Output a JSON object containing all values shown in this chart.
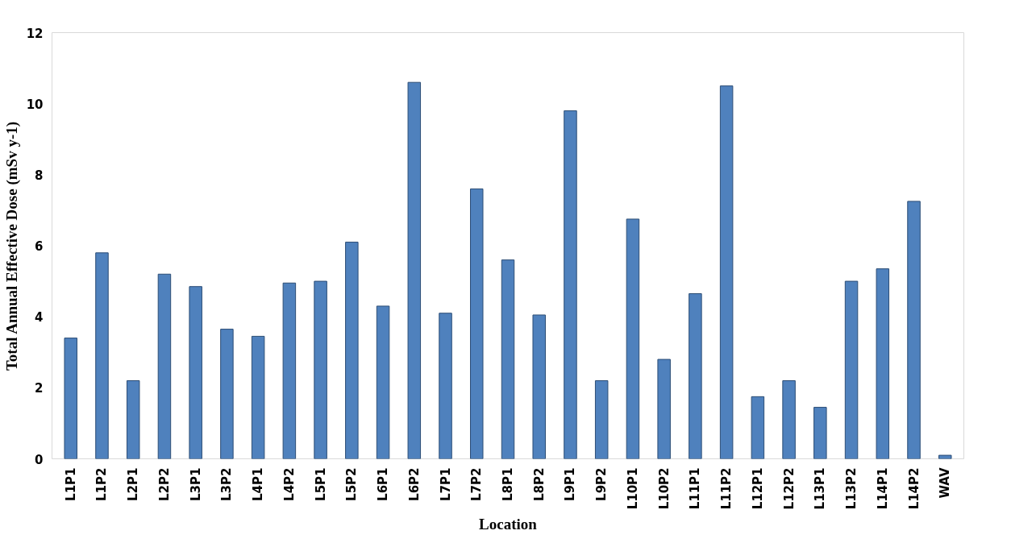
{
  "chart_data": {
    "type": "bar",
    "xlabel": "Location",
    "ylabel": "Total Annual Effective Dose (mSv y-1)",
    "categories": [
      "L1P1",
      "L1P2",
      "L2P1",
      "L2P2",
      "L3P1",
      "L3P2",
      "L4P1",
      "L4P2",
      "L5P1",
      "L5P2",
      "L6P1",
      "L6P2",
      "L7P1",
      "L7P2",
      "L8P1",
      "L8P2",
      "L9P1",
      "L9P2",
      "L10P1",
      "L10P2",
      "L11P1",
      "L11P2",
      "L12P1",
      "L12P2",
      "L13P1",
      "L13P2",
      "L14P1",
      "L14P2",
      "WAV"
    ],
    "values": [
      3.4,
      5.8,
      2.2,
      5.2,
      4.85,
      3.65,
      3.45,
      4.95,
      5.0,
      6.1,
      4.3,
      10.6,
      4.1,
      7.6,
      5.6,
      4.05,
      9.8,
      2.2,
      6.75,
      2.8,
      4.65,
      10.5,
      1.75,
      2.2,
      1.45,
      5.0,
      5.35,
      7.25,
      0.1
    ],
    "color": "#4f81bd",
    "ylim": [
      0,
      12
    ],
    "yticks": [
      0,
      2,
      4,
      6,
      8,
      10,
      12
    ],
    "grid": false
  }
}
